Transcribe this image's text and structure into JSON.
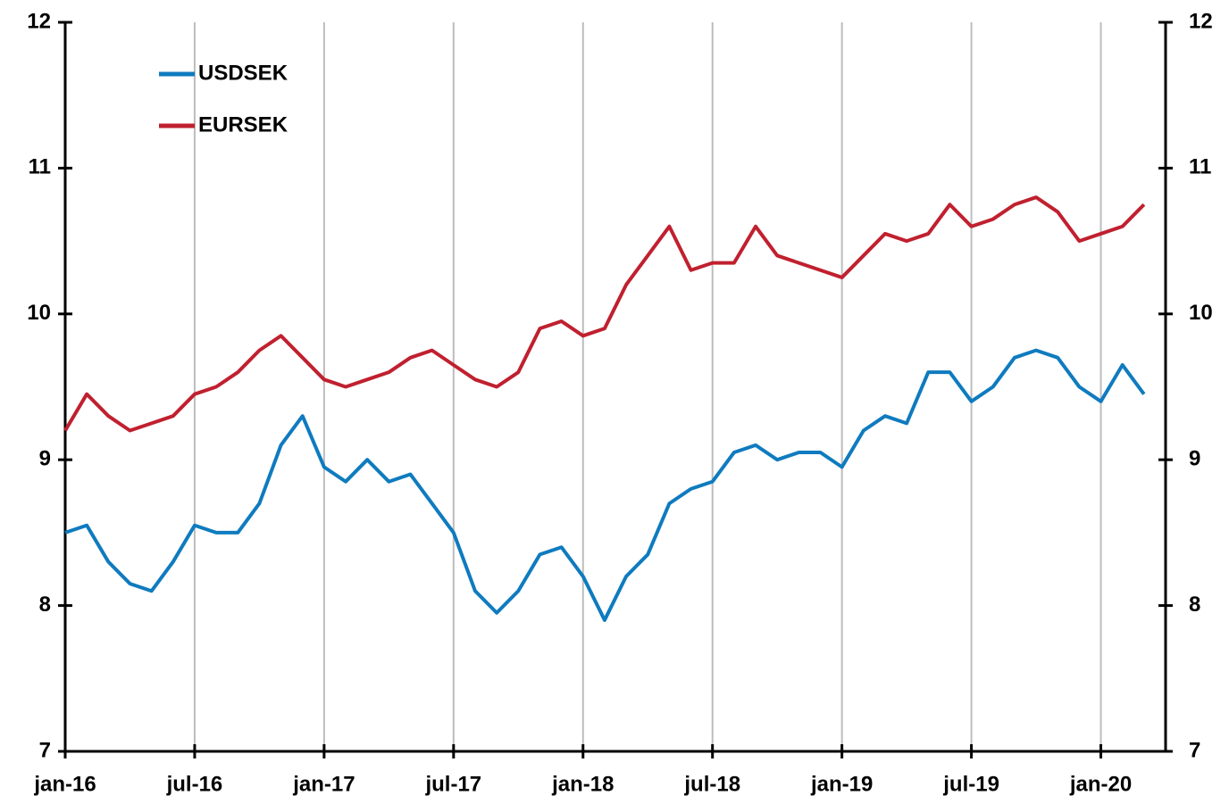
{
  "chart_data": {
    "type": "line",
    "x": [
      "2016-01",
      "2016-02",
      "2016-03",
      "2016-04",
      "2016-05",
      "2016-06",
      "2016-07",
      "2016-08",
      "2016-09",
      "2016-10",
      "2016-11",
      "2016-12",
      "2017-01",
      "2017-02",
      "2017-03",
      "2017-04",
      "2017-05",
      "2017-06",
      "2017-07",
      "2017-08",
      "2017-09",
      "2017-10",
      "2017-11",
      "2017-12",
      "2018-01",
      "2018-02",
      "2018-03",
      "2018-04",
      "2018-05",
      "2018-06",
      "2018-07",
      "2018-08",
      "2018-09",
      "2018-10",
      "2018-11",
      "2018-12",
      "2019-01",
      "2019-02",
      "2019-03",
      "2019-04",
      "2019-05",
      "2019-06",
      "2019-07",
      "2019-08",
      "2019-09",
      "2019-10",
      "2019-11",
      "2019-12",
      "2020-01",
      "2020-02",
      "2020-03"
    ],
    "series": [
      {
        "name": "USDSEK",
        "color": "#0f7bbf",
        "values": [
          8.5,
          8.55,
          8.3,
          8.15,
          8.1,
          8.3,
          8.55,
          8.5,
          8.5,
          8.7,
          9.1,
          9.3,
          8.95,
          8.85,
          9.0,
          8.85,
          8.9,
          8.7,
          8.5,
          8.1,
          7.95,
          8.1,
          8.35,
          8.4,
          8.2,
          7.9,
          8.2,
          8.35,
          8.7,
          8.8,
          8.85,
          9.05,
          9.1,
          9.0,
          9.05,
          9.05,
          8.95,
          9.2,
          9.3,
          9.25,
          9.6,
          9.6,
          9.4,
          9.5,
          9.7,
          9.75,
          9.7,
          9.5,
          9.4,
          9.65,
          9.45
        ]
      },
      {
        "name": "EURSEK",
        "color": "#c0202f",
        "values": [
          9.2,
          9.45,
          9.3,
          9.2,
          9.25,
          9.3,
          9.45,
          9.5,
          9.6,
          9.75,
          9.85,
          9.7,
          9.55,
          9.5,
          9.55,
          9.6,
          9.7,
          9.75,
          9.65,
          9.55,
          9.5,
          9.6,
          9.9,
          9.95,
          9.85,
          9.9,
          10.2,
          10.4,
          10.6,
          10.3,
          10.35,
          10.35,
          10.6,
          10.4,
          10.35,
          10.3,
          10.25,
          10.4,
          10.55,
          10.5,
          10.55,
          10.75,
          10.6,
          10.65,
          10.75,
          10.8,
          10.7,
          10.5,
          10.55,
          10.6,
          10.75
        ]
      }
    ],
    "xlim": [
      "2016-01",
      "2020-04"
    ],
    "xticks": [
      {
        "value": "2016-01",
        "label": "jan-16"
      },
      {
        "value": "2016-07",
        "label": "jul-16"
      },
      {
        "value": "2017-01",
        "label": "jan-17"
      },
      {
        "value": "2017-07",
        "label": "jul-17"
      },
      {
        "value": "2018-01",
        "label": "jan-18"
      },
      {
        "value": "2018-07",
        "label": "jul-18"
      },
      {
        "value": "2019-01",
        "label": "jan-19"
      },
      {
        "value": "2019-07",
        "label": "jul-19"
      },
      {
        "value": "2020-01",
        "label": "jan-20"
      }
    ],
    "ylim": [
      7,
      12
    ],
    "yticks": [
      7,
      8,
      9,
      10,
      11,
      12
    ],
    "y2lim": [
      7,
      12
    ],
    "y2ticks": [
      7,
      8,
      9,
      10,
      11,
      12
    ],
    "grid": "x",
    "legend": "upper left"
  }
}
